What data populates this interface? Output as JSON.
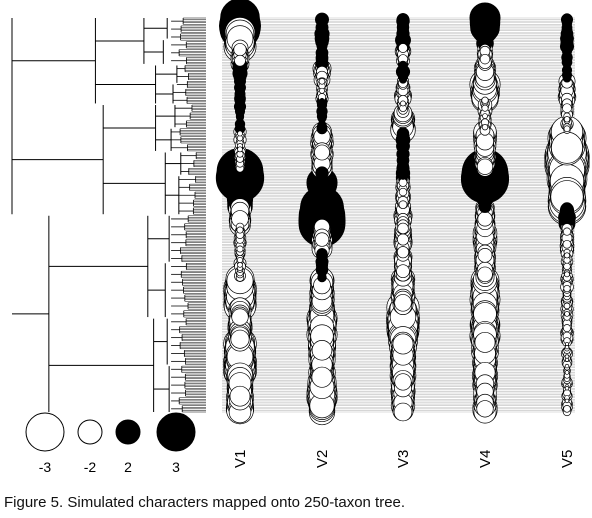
{
  "caption": "Figure 5. Simulated characters mapped onto 250-taxon tree.",
  "chart_data": {
    "type": "scatter",
    "taxa_count": 250,
    "variables": [
      "V1",
      "V2",
      "V3",
      "V4",
      "V5"
    ],
    "size_legend": {
      "entries": [
        {
          "value": -3,
          "label": "-3",
          "fill": "#ffffff"
        },
        {
          "value": -2,
          "label": "-2",
          "fill": "#ffffff"
        },
        {
          "value": 2,
          "label": "2",
          "fill": "#000000"
        },
        {
          "value": 3,
          "label": "3",
          "fill": "#000000"
        }
      ]
    },
    "encoding": {
      "negative_fill": "#ffffff",
      "positive_fill": "#000000",
      "stroke": "#000000"
    },
    "row_line_color": "#bdbdbd",
    "clade_values": [
      {
        "start": 0,
        "end": 9,
        "values": [
          2.6,
          0.7,
          0.6,
          1.8,
          0.5
        ]
      },
      {
        "start": 9,
        "end": 19,
        "values": [
          -2.0,
          0.8,
          0.8,
          1.0,
          0.7
        ]
      },
      {
        "start": 19,
        "end": 30,
        "values": [
          -1.0,
          0.6,
          -0.8,
          -0.8,
          0.6
        ]
      },
      {
        "start": 30,
        "end": 40,
        "values": [
          0.8,
          -1.0,
          0.7,
          -1.2,
          0.5
        ]
      },
      {
        "start": 40,
        "end": 52,
        "values": [
          0.5,
          -0.6,
          -0.9,
          -1.8,
          -1.0
        ]
      },
      {
        "start": 52,
        "end": 60,
        "values": [
          0.6,
          0.5,
          -0.6,
          -0.7,
          -0.8
        ]
      },
      {
        "start": 60,
        "end": 72,
        "values": [
          0.4,
          0.5,
          -1.4,
          -0.6,
          -0.6
        ]
      },
      {
        "start": 72,
        "end": 85,
        "values": [
          -0.6,
          -1.3,
          0.7,
          -1.4,
          -2.4
        ]
      },
      {
        "start": 85,
        "end": 96,
        "values": [
          -0.6,
          -1.3,
          0.6,
          -1.2,
          -2.8
        ]
      },
      {
        "start": 96,
        "end": 103,
        "values": [
          3.0,
          0.6,
          0.7,
          3.0,
          -2.6
        ]
      },
      {
        "start": 103,
        "end": 120,
        "values": [
          1.6,
          1.8,
          -0.8,
          0.7,
          -2.4
        ]
      },
      {
        "start": 120,
        "end": 132,
        "values": [
          -1.4,
          3.0,
          -1.0,
          -1.2,
          1.0
        ]
      },
      {
        "start": 132,
        "end": 148,
        "values": [
          -0.6,
          -1.2,
          -1.0,
          -1.4,
          -0.7
        ]
      },
      {
        "start": 148,
        "end": 165,
        "values": [
          -0.6,
          0.6,
          -1.0,
          -1.2,
          -0.6
        ]
      },
      {
        "start": 165,
        "end": 183,
        "values": [
          -2.0,
          -1.4,
          -1.4,
          -1.8,
          -0.6
        ]
      },
      {
        "start": 183,
        "end": 205,
        "values": [
          -1.4,
          -1.8,
          -2.0,
          -1.8,
          -0.6
        ]
      },
      {
        "start": 205,
        "end": 228,
        "values": [
          -2.0,
          -1.6,
          -1.6,
          -1.6,
          -0.5
        ]
      },
      {
        "start": 228,
        "end": 250,
        "values": [
          -1.6,
          -1.8,
          -1.4,
          -1.4,
          -0.5
        ]
      }
    ],
    "tree_nodes": [
      {
        "tips": [
          0,
          125
        ],
        "depth": 0.0,
        "parent_depth": 0.0
      },
      {
        "tips": [
          0,
          55
        ],
        "depth": 0.43,
        "parent_depth": 0.0
      },
      {
        "tips": [
          0,
          30
        ],
        "depth": 0.68,
        "parent_depth": 0.43
      },
      {
        "tips": [
          0,
          14
        ],
        "depth": 0.8,
        "parent_depth": 0.68
      },
      {
        "tips": [
          14,
          30
        ],
        "depth": 0.78,
        "parent_depth": 0.68
      },
      {
        "tips": [
          30,
          55
        ],
        "depth": 0.74,
        "parent_depth": 0.43
      },
      {
        "tips": [
          30,
          42
        ],
        "depth": 0.85,
        "parent_depth": 0.74
      },
      {
        "tips": [
          42,
          55
        ],
        "depth": 0.83,
        "parent_depth": 0.74
      },
      {
        "tips": [
          55,
          125
        ],
        "depth": 0.47,
        "parent_depth": 0.0
      },
      {
        "tips": [
          55,
          85
        ],
        "depth": 0.74,
        "parent_depth": 0.47
      },
      {
        "tips": [
          55,
          70
        ],
        "depth": 0.84,
        "parent_depth": 0.74
      },
      {
        "tips": [
          70,
          85
        ],
        "depth": 0.82,
        "parent_depth": 0.74
      },
      {
        "tips": [
          85,
          125
        ],
        "depth": 0.79,
        "parent_depth": 0.47
      },
      {
        "tips": [
          85,
          100
        ],
        "depth": 0.87,
        "parent_depth": 0.79
      },
      {
        "tips": [
          100,
          125
        ],
        "depth": 0.86,
        "parent_depth": 0.79
      },
      {
        "tips": [
          125,
          250
        ],
        "depth": 0.19,
        "parent_depth": 0.0
      },
      {
        "tips": [
          125,
          190
        ],
        "depth": 0.7,
        "parent_depth": 0.19
      },
      {
        "tips": [
          125,
          155
        ],
        "depth": 0.81,
        "parent_depth": 0.7
      },
      {
        "tips": [
          155,
          190
        ],
        "depth": 0.79,
        "parent_depth": 0.7
      },
      {
        "tips": [
          190,
          250
        ],
        "depth": 0.73,
        "parent_depth": 0.19
      },
      {
        "tips": [
          190,
          220
        ],
        "depth": 0.8,
        "parent_depth": 0.73
      },
      {
        "tips": [
          220,
          250
        ],
        "depth": 0.81,
        "parent_depth": 0.73
      }
    ]
  }
}
